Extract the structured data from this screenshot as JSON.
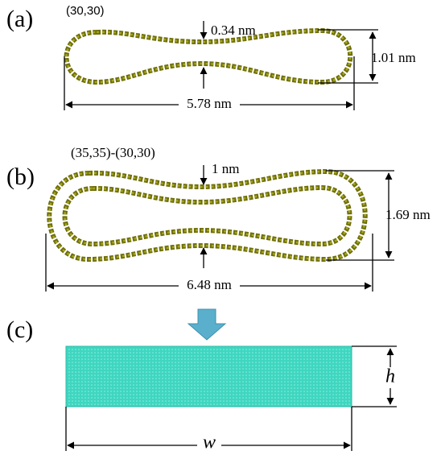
{
  "panels": [
    {
      "label": "(a)",
      "structure": "(30,30)",
      "gap": "0.34 nm",
      "height": "1.01 nm",
      "width": "5.78 nm"
    },
    {
      "label": "(b)",
      "structure": "(35,35)-(30,30)",
      "gap": "1 nm",
      "height": "1.69 nm",
      "width": "6.48 nm"
    },
    {
      "label": "(c)",
      "height": "h",
      "width": "w"
    }
  ]
}
